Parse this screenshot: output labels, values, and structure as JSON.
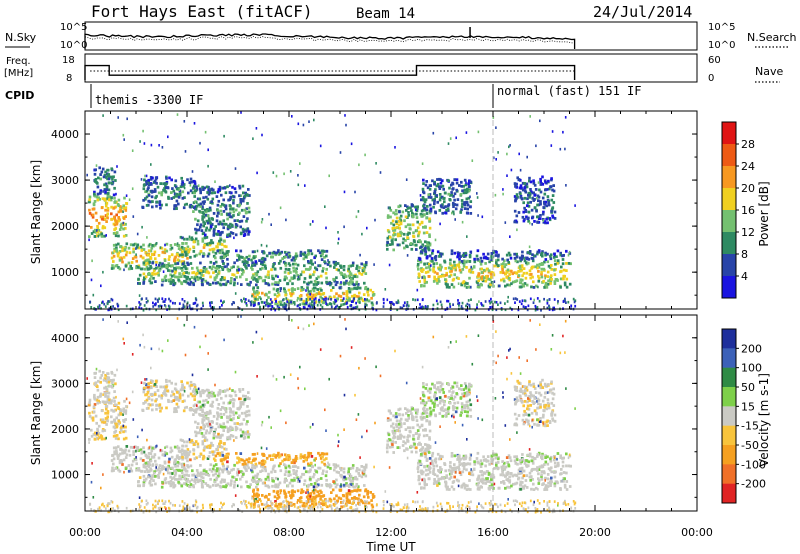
{
  "header": {
    "title": "Fort Hays East (fitACF)",
    "beam": "Beam 14",
    "date": "24/Jul/2014"
  },
  "params": {
    "nsky_label": "N.Sky",
    "nsearch_label": "N.Search",
    "freq_label_line1": "Freq.",
    "freq_label_line2": "[MHz]",
    "nave_label": "Nave",
    "cpid_label": "CPID",
    "n_ticks": [
      "10^5",
      "10^0"
    ],
    "n_ticks_right": [
      "10^5",
      "10^0"
    ],
    "freq_ticks": [
      "18",
      "8"
    ],
    "nave_ticks": [
      "60",
      "0"
    ],
    "cpid_segments": [
      {
        "start": 0.0,
        "end": 16.0,
        "label": "themis -3300 IF"
      },
      {
        "start": 16.0,
        "end": 19.2,
        "label": "normal (fast) 151 IF"
      }
    ],
    "freq_segments_mhz": [
      {
        "start": 0.0,
        "end": 0.95,
        "value": 14.0
      },
      {
        "start": 0.95,
        "end": 13.0,
        "value": 10.0
      },
      {
        "start": 13.0,
        "end": 19.2,
        "value": 14.0
      }
    ],
    "data_end_hours": 19.2
  },
  "chart_data": [
    {
      "type": "heatmap",
      "name": "power",
      "ylabel": "Slant Range [km]",
      "xlabel": "",
      "xlim_hours": [
        0,
        24
      ],
      "ylim_km": [
        200,
        4500
      ],
      "yticks": [
        "4000",
        "3000",
        "2000",
        "1000"
      ],
      "ytick_values": [
        4000,
        3000,
        2000,
        1000
      ],
      "colorbar": {
        "label": "Power [dB]",
        "ticks": [
          "28",
          "24",
          "20",
          "16",
          "12",
          "8",
          "4"
        ],
        "colors": [
          "#1a14e0",
          "#2844a8",
          "#2e8a62",
          "#74c070",
          "#f0d020",
          "#f79820",
          "#ee5a14",
          "#e01414"
        ]
      }
    },
    {
      "type": "heatmap",
      "name": "velocity",
      "ylabel": "Slant Range [km]",
      "xlabel": "Time UT",
      "xlim_hours": [
        0,
        24
      ],
      "ylim_km": [
        200,
        4500
      ],
      "yticks": [
        "4000",
        "3000",
        "2000",
        "1000"
      ],
      "ytick_values": [
        4000,
        3000,
        2000,
        1000
      ],
      "xticks": [
        "00:00",
        "04:00",
        "08:00",
        "12:00",
        "16:00",
        "20:00",
        "00:00"
      ],
      "xtick_values": [
        0,
        4,
        8,
        12,
        16,
        20,
        24
      ],
      "colorbar": {
        "label": "Velocity [m s-1]",
        "ticks": [
          "200",
          "100",
          "50",
          "15",
          "-15",
          "-50",
          "-100",
          "-200"
        ],
        "colors": [
          "#1e2f9c",
          "#3c61b8",
          "#2f8b45",
          "#7ed04a",
          "#cacac4",
          "#f8c43c",
          "#f5a020",
          "#f07028",
          "#e02424"
        ]
      }
    }
  ],
  "echo_regions": [
    {
      "t0": 0.1,
      "t1": 1.6,
      "r0": 1800,
      "r1": 2700,
      "p": 21,
      "v": -12
    },
    {
      "t0": 0.3,
      "t1": 1.2,
      "r0": 2700,
      "r1": 3300,
      "p": 9,
      "v": -5
    },
    {
      "t0": 1.0,
      "t1": 4.0,
      "r0": 1100,
      "r1": 1650,
      "p": 19,
      "v": 3
    },
    {
      "t0": 2.2,
      "t1": 4.3,
      "r0": 2400,
      "r1": 3100,
      "p": 9,
      "v": -10
    },
    {
      "t0": 3.6,
      "t1": 5.5,
      "r0": 1350,
      "r1": 1800,
      "p": 16,
      "v": -8
    },
    {
      "t0": 4.2,
      "t1": 6.4,
      "r0": 1800,
      "r1": 2900,
      "p": 10,
      "v": 4
    },
    {
      "t0": 2.0,
      "t1": 11.0,
      "r0": 750,
      "r1": 1250,
      "p": 14,
      "v": 6
    },
    {
      "t0": 5.0,
      "t1": 9.5,
      "r0": 1250,
      "r1": 1500,
      "p": 11,
      "v": -35
    },
    {
      "t0": 6.5,
      "t1": 11.3,
      "r0": 320,
      "r1": 700,
      "p": 18,
      "v": -55
    },
    {
      "t0": 11.8,
      "t1": 13.5,
      "r0": 1500,
      "r1": 2500,
      "p": 15,
      "v": 3
    },
    {
      "t0": 13.0,
      "t1": 19.0,
      "r0": 700,
      "r1": 1300,
      "p": 18,
      "v": 2
    },
    {
      "t0": 13.0,
      "t1": 19.0,
      "r0": 1300,
      "r1": 1500,
      "p": 7,
      "v": 8
    },
    {
      "t0": 13.1,
      "t1": 15.1,
      "r0": 2300,
      "r1": 3050,
      "p": 9,
      "v": 10
    },
    {
      "t0": 16.8,
      "t1": 18.4,
      "r0": 2100,
      "r1": 3100,
      "p": 7,
      "v": -6
    }
  ]
}
